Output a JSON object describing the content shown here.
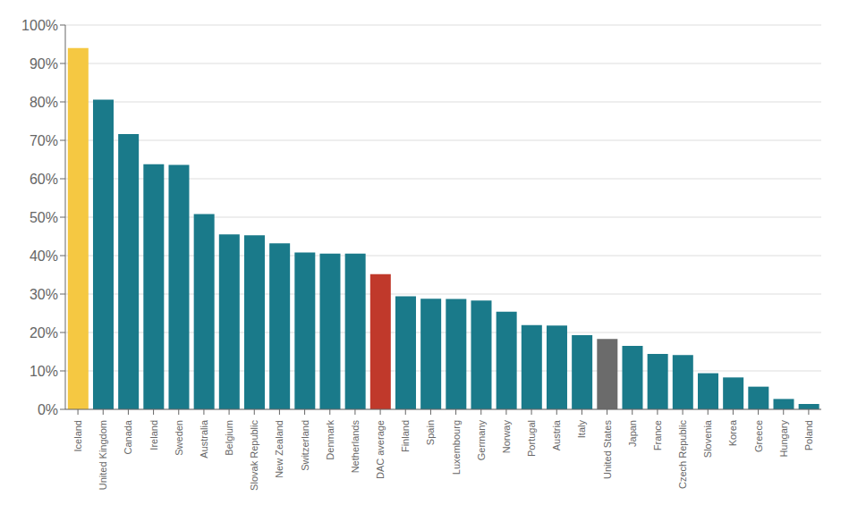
{
  "chart_data": {
    "type": "bar",
    "categories": [
      "Iceland",
      "United Kingdom",
      "Canada",
      "Ireland",
      "Sweden",
      "Australia",
      "Belgium",
      "Slovak Republic",
      "New Zealand",
      "Switzerland",
      "Denmark",
      "Netherlands",
      "DAC average",
      "Finland",
      "Spain",
      "Luxembourg",
      "Germany",
      "Norway",
      "Portugal",
      "Austria",
      "Italy",
      "United States",
      "Japan",
      "France",
      "Czech Republic",
      "Slovenia",
      "Korea",
      "Greece",
      "Hungary",
      "Poland"
    ],
    "values": [
      0.94,
      0.806,
      0.716,
      0.638,
      0.636,
      0.508,
      0.455,
      0.453,
      0.432,
      0.408,
      0.405,
      0.405,
      0.352,
      0.294,
      0.288,
      0.287,
      0.283,
      0.254,
      0.219,
      0.218,
      0.193,
      0.183,
      0.165,
      0.144,
      0.141,
      0.094,
      0.083,
      0.059,
      0.027,
      0.014
    ],
    "colors": [
      "#f5c842",
      "#1a7a8a",
      "#1a7a8a",
      "#1a7a8a",
      "#1a7a8a",
      "#1a7a8a",
      "#1a7a8a",
      "#1a7a8a",
      "#1a7a8a",
      "#1a7a8a",
      "#1a7a8a",
      "#1a7a8a",
      "#c0392b",
      "#1a7a8a",
      "#1a7a8a",
      "#1a7a8a",
      "#1a7a8a",
      "#1a7a8a",
      "#1a7a8a",
      "#1a7a8a",
      "#1a7a8a",
      "#6b6b6b",
      "#1a7a8a",
      "#1a7a8a",
      "#1a7a8a",
      "#1a7a8a",
      "#1a7a8a",
      "#1a7a8a",
      "#1a7a8a",
      "#1a7a8a"
    ],
    "ylim": [
      0,
      1.0
    ],
    "yticks": [
      {
        "value": 0,
        "label": "0%"
      },
      {
        "value": 0.1,
        "label": "10%"
      },
      {
        "value": 0.2,
        "label": "20%"
      },
      {
        "value": 0.3,
        "label": "30%"
      },
      {
        "value": 0.4,
        "label": "40%"
      },
      {
        "value": 0.5,
        "label": "50%"
      },
      {
        "value": 0.6,
        "label": "60%"
      },
      {
        "value": 0.7,
        "label": "70%"
      },
      {
        "value": 0.8,
        "label": "80%"
      },
      {
        "value": 0.9,
        "label": "90%"
      },
      {
        "value": 1.0,
        "label": "100%"
      }
    ],
    "grid": true
  }
}
